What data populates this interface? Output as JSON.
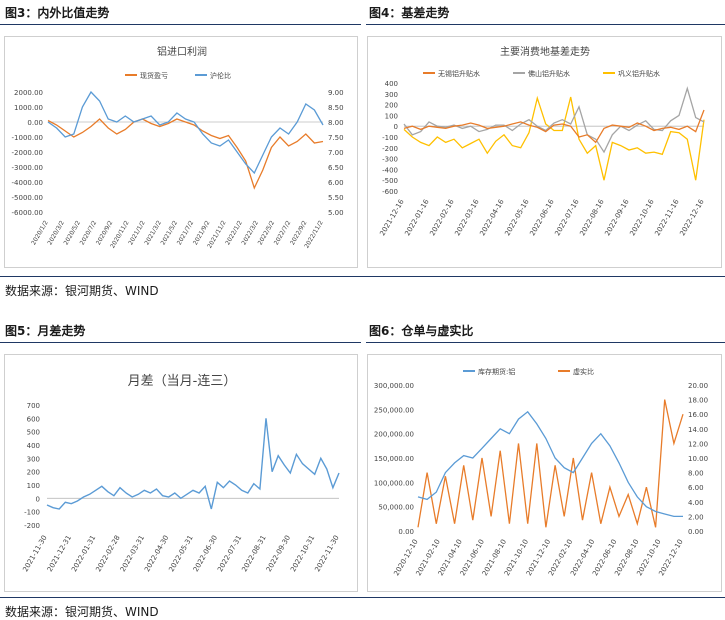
{
  "sections": {
    "s3": {
      "title": "图3：内外比值走势"
    },
    "s4": {
      "title": "图4：基差走势"
    },
    "s5": {
      "title": "图5：月差走势"
    },
    "s6": {
      "title": "图6：仓单与虚实比"
    }
  },
  "sources": {
    "top": "数据来源：银河期货、WIND",
    "bottom": "数据来源：银河期货、WIND"
  },
  "colors": {
    "orange": "#E87C2A",
    "blue": "#5B9BD5",
    "gray": "#A5A5A5",
    "yellow": "#FFC000",
    "rule": "#1f3864"
  },
  "chart_data": [
    {
      "type": "line",
      "title": "铝进口利润",
      "legend_position": "top",
      "x_tick_labels": [
        "2020/1/2",
        "2020/3/2",
        "2020/5/2",
        "2020/7/2",
        "2020/9/2",
        "2020/11/2",
        "2021/1/2",
        "2021/3/2",
        "2021/5/2",
        "2021/7/2",
        "2021/9/2",
        "2021/11/2",
        "2022/1/2",
        "2022/3/2",
        "2022/5/2",
        "2022/7/2",
        "2022/9/2",
        "2022/11/2"
      ],
      "x_tick_labels_display": [
        "2020/1/2",
        "2020/3/2",
        "2020/5/2",
        "2020/7/2",
        "2020/9/2",
        "2020/11/2",
        "2021/1/2",
        "2021/3/2",
        "2021/5/2",
        "2021/7/2",
        "2021/9/2",
        "2021/11/2",
        "2022/1/2",
        "2022/3/2",
        "2022/5/2",
        "2022/7/2",
        "2022/9/2",
        "2022/11/2"
      ],
      "y_left_ticks": [
        "2000.00",
        "1000.00",
        "0.00",
        "-1000.00",
        "-2000.00",
        "-3000.00",
        "-4000.00",
        "-5000.00",
        "-6000.00"
      ],
      "y_right_ticks": [
        "9.00",
        "8.50",
        "8.00",
        "7.50",
        "7.00",
        "6.50",
        "6.00",
        "5.50",
        "5.00"
      ],
      "ylim_left": [
        -6000,
        2000
      ],
      "ylim_right": [
        5,
        9
      ],
      "series": [
        {
          "name": "现货盈亏",
          "axis": "left",
          "color": "orange",
          "values": [
            100,
            -200,
            -600,
            -1000,
            -700,
            -300,
            200,
            -400,
            -800,
            -500,
            0,
            200,
            -100,
            -300,
            -100,
            200,
            0,
            -200,
            -600,
            -900,
            -1100,
            -900,
            -1700,
            -2600,
            -4400,
            -3200,
            -1700,
            -1000,
            -1600,
            -1300,
            -800,
            -1400,
            -1300
          ]
        },
        {
          "name": "沪伦比",
          "axis": "right",
          "color": "blue",
          "values": [
            8.0,
            7.8,
            7.5,
            7.6,
            8.5,
            9.0,
            8.7,
            8.1,
            8.0,
            8.2,
            8.0,
            8.1,
            8.2,
            7.9,
            8.0,
            8.3,
            8.1,
            8.0,
            7.6,
            7.3,
            7.2,
            7.4,
            7.0,
            6.6,
            6.3,
            6.9,
            7.5,
            7.8,
            7.6,
            8.0,
            8.6,
            8.4,
            7.9
          ]
        }
      ]
    },
    {
      "type": "line",
      "title": "主要消费地基差走势",
      "legend_position": "top",
      "x_tick_labels": [
        "2021-12-16",
        "2022-01-16",
        "2022-02-16",
        "2022-03-16",
        "2022-04-16",
        "2022-05-16",
        "2022-06-16",
        "2022-07-16",
        "2022-08-16",
        "2022-09-16",
        "2022-10-16",
        "2022-11-16",
        "2022-12-16"
      ],
      "y_ticks": [
        "400",
        "300",
        "200",
        "100",
        "0",
        "-100",
        "-200",
        "-300",
        "-400",
        "-500",
        "-600"
      ],
      "ylim": [
        -600,
        400
      ],
      "series": [
        {
          "name": "无锡铝升贴水",
          "color": "orange",
          "values": [
            -20,
            0,
            -30,
            0,
            -10,
            -20,
            0,
            10,
            30,
            10,
            -20,
            -10,
            0,
            20,
            40,
            10,
            -10,
            -50,
            10,
            20,
            0,
            -100,
            -80,
            -150,
            -20,
            10,
            0,
            -10,
            30,
            0,
            -40,
            -20,
            -10,
            -30,
            0,
            -50,
            150
          ]
        },
        {
          "name": "佛山铝升贴水",
          "color": "gray",
          "values": [
            20,
            -80,
            -50,
            40,
            0,
            -10,
            10,
            -20,
            0,
            -50,
            -30,
            10,
            10,
            -40,
            20,
            60,
            0,
            -40,
            30,
            60,
            20,
            180,
            -80,
            -120,
            -240,
            -80,
            0,
            -40,
            10,
            50,
            -30,
            -40,
            50,
            100,
            350,
            80,
            40
          ]
        },
        {
          "name": "巩义铝升贴水",
          "color": "yellow",
          "values": [
            -30,
            -100,
            -150,
            -180,
            -100,
            -150,
            -120,
            -200,
            -160,
            -120,
            -250,
            -140,
            -80,
            -180,
            -200,
            -60,
            260,
            20,
            -40,
            -40,
            270,
            -120,
            -250,
            -180,
            -500,
            -150,
            -180,
            -220,
            -200,
            -250,
            -240,
            -260,
            -50,
            -60,
            -120,
            -500,
            60
          ]
        }
      ]
    },
    {
      "type": "line",
      "title": "月差（当月-连三）",
      "x_tick_labels": [
        "2021-11-30",
        "2021-12-31",
        "2022-01-31",
        "2022-02-28",
        "2022-03-31",
        "2022-04-30",
        "2022-05-31",
        "2022-06-30",
        "2022-07-31",
        "2022-08-31",
        "2022-09-30",
        "2022-10-31",
        "2022-11-30"
      ],
      "y_ticks": [
        "700",
        "600",
        "500",
        "400",
        "300",
        "200",
        "100",
        "0",
        "-100",
        "-200"
      ],
      "ylim": [
        -200,
        700
      ],
      "series": [
        {
          "name": "月差",
          "color": "blue",
          "values": [
            -50,
            -70,
            -80,
            -30,
            -40,
            -20,
            10,
            30,
            60,
            90,
            50,
            20,
            80,
            40,
            10,
            30,
            60,
            40,
            70,
            20,
            10,
            40,
            0,
            30,
            60,
            40,
            90,
            -80,
            120,
            80,
            130,
            100,
            60,
            40,
            110,
            70,
            600,
            200,
            320,
            250,
            190,
            330,
            260,
            220,
            180,
            300,
            220,
            80,
            190
          ]
        }
      ]
    },
    {
      "type": "line",
      "legend_position": "top",
      "x_tick_labels": [
        "2020-12-10",
        "2021-02-10",
        "2021-04-10",
        "2021-06-10",
        "2021-08-10",
        "2021-10-10",
        "2021-12-10",
        "2022-02-10",
        "2022-04-10",
        "2022-06-10",
        "2022-08-10",
        "2022-10-10",
        "2022-12-10"
      ],
      "y_left_ticks": [
        "300,000.00",
        "250,000.00",
        "200,000.00",
        "150,000.00",
        "100,000.00",
        "50,000.00",
        "0.00"
      ],
      "y_right_ticks": [
        "20.00",
        "18.00",
        "16.00",
        "14.00",
        "12.00",
        "10.00",
        "8.00",
        "6.00",
        "4.00",
        "2.00",
        "0.00"
      ],
      "ylim_left": [
        0,
        300000
      ],
      "ylim_right": [
        0,
        20
      ],
      "series": [
        {
          "name": "库存期货:铝",
          "axis": "left",
          "color": "blue",
          "values": [
            70000,
            65000,
            80000,
            120000,
            140000,
            155000,
            150000,
            170000,
            190000,
            210000,
            200000,
            230000,
            245000,
            220000,
            190000,
            150000,
            130000,
            120000,
            150000,
            180000,
            200000,
            175000,
            140000,
            100000,
            70000,
            50000,
            40000,
            35000,
            30000,
            30000
          ]
        },
        {
          "name": "虚实比",
          "axis": "right",
          "color": "orange",
          "values": [
            0.5,
            8,
            1,
            7.5,
            1,
            9,
            1.5,
            10,
            2,
            11,
            1,
            12,
            1,
            12,
            0.5,
            9,
            2,
            10,
            1.5,
            8,
            1,
            6,
            2,
            5,
            1,
            6,
            0.5,
            18,
            12,
            16
          ]
        }
      ]
    }
  ]
}
